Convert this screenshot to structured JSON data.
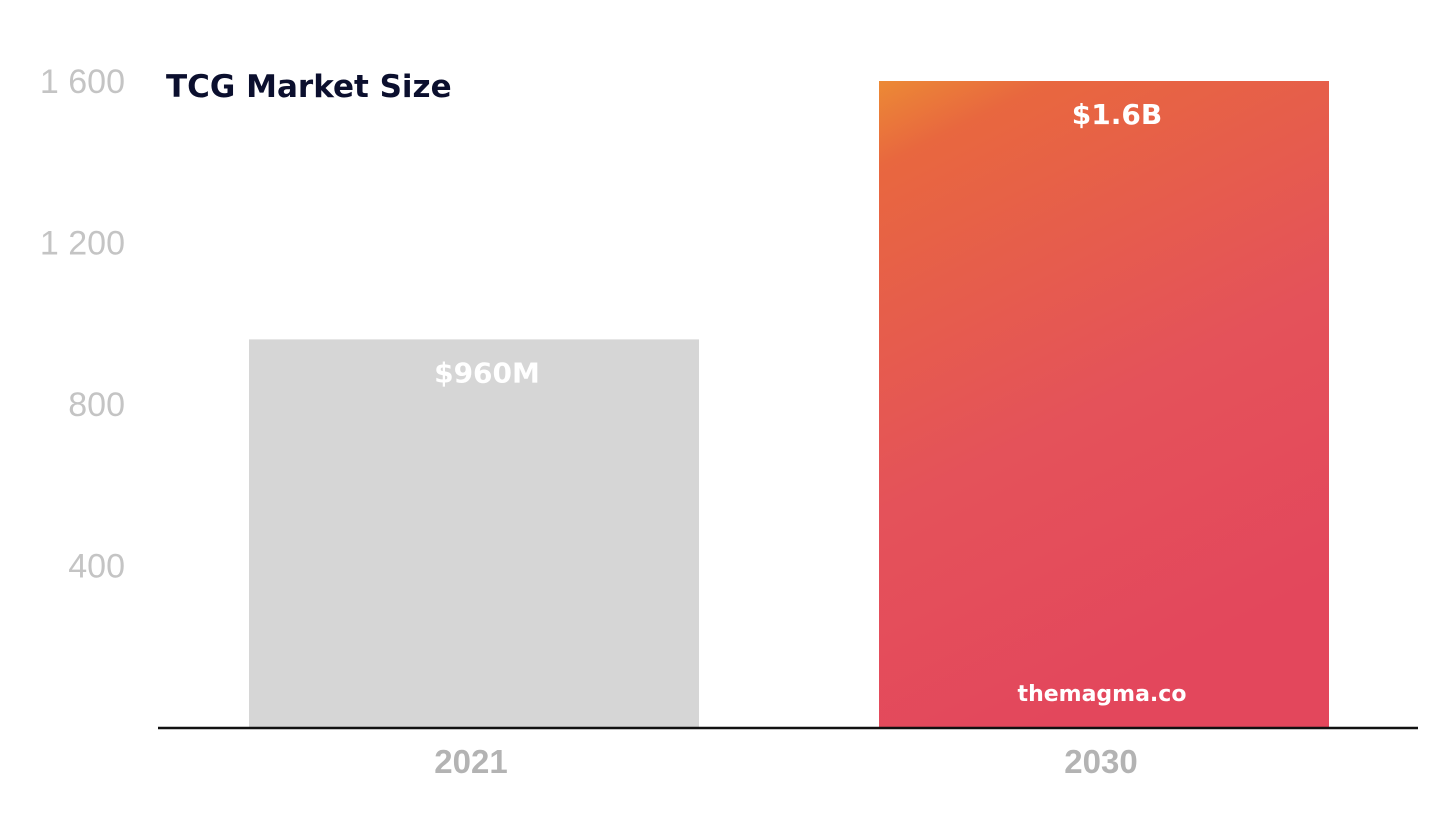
{
  "chart_data": {
    "type": "bar",
    "title": "TCG Market Size",
    "categories": [
      "2021",
      "2030"
    ],
    "values": [
      960,
      1600
    ],
    "data_labels": [
      "$960M",
      "$1.6B"
    ],
    "ylim": [
      0,
      1600
    ],
    "yticks": [
      400,
      800,
      1200,
      1600
    ],
    "ytick_labels": [
      "400",
      "800",
      "1 200",
      "1 600"
    ],
    "xlabel": "",
    "ylabel": "",
    "grid": false,
    "legend": "none",
    "bar_colors": [
      "#d6d6d6",
      "gradient"
    ],
    "gradient_colors": [
      "#ec8a35",
      "#e3475c"
    ],
    "watermark": "themagma.co"
  }
}
